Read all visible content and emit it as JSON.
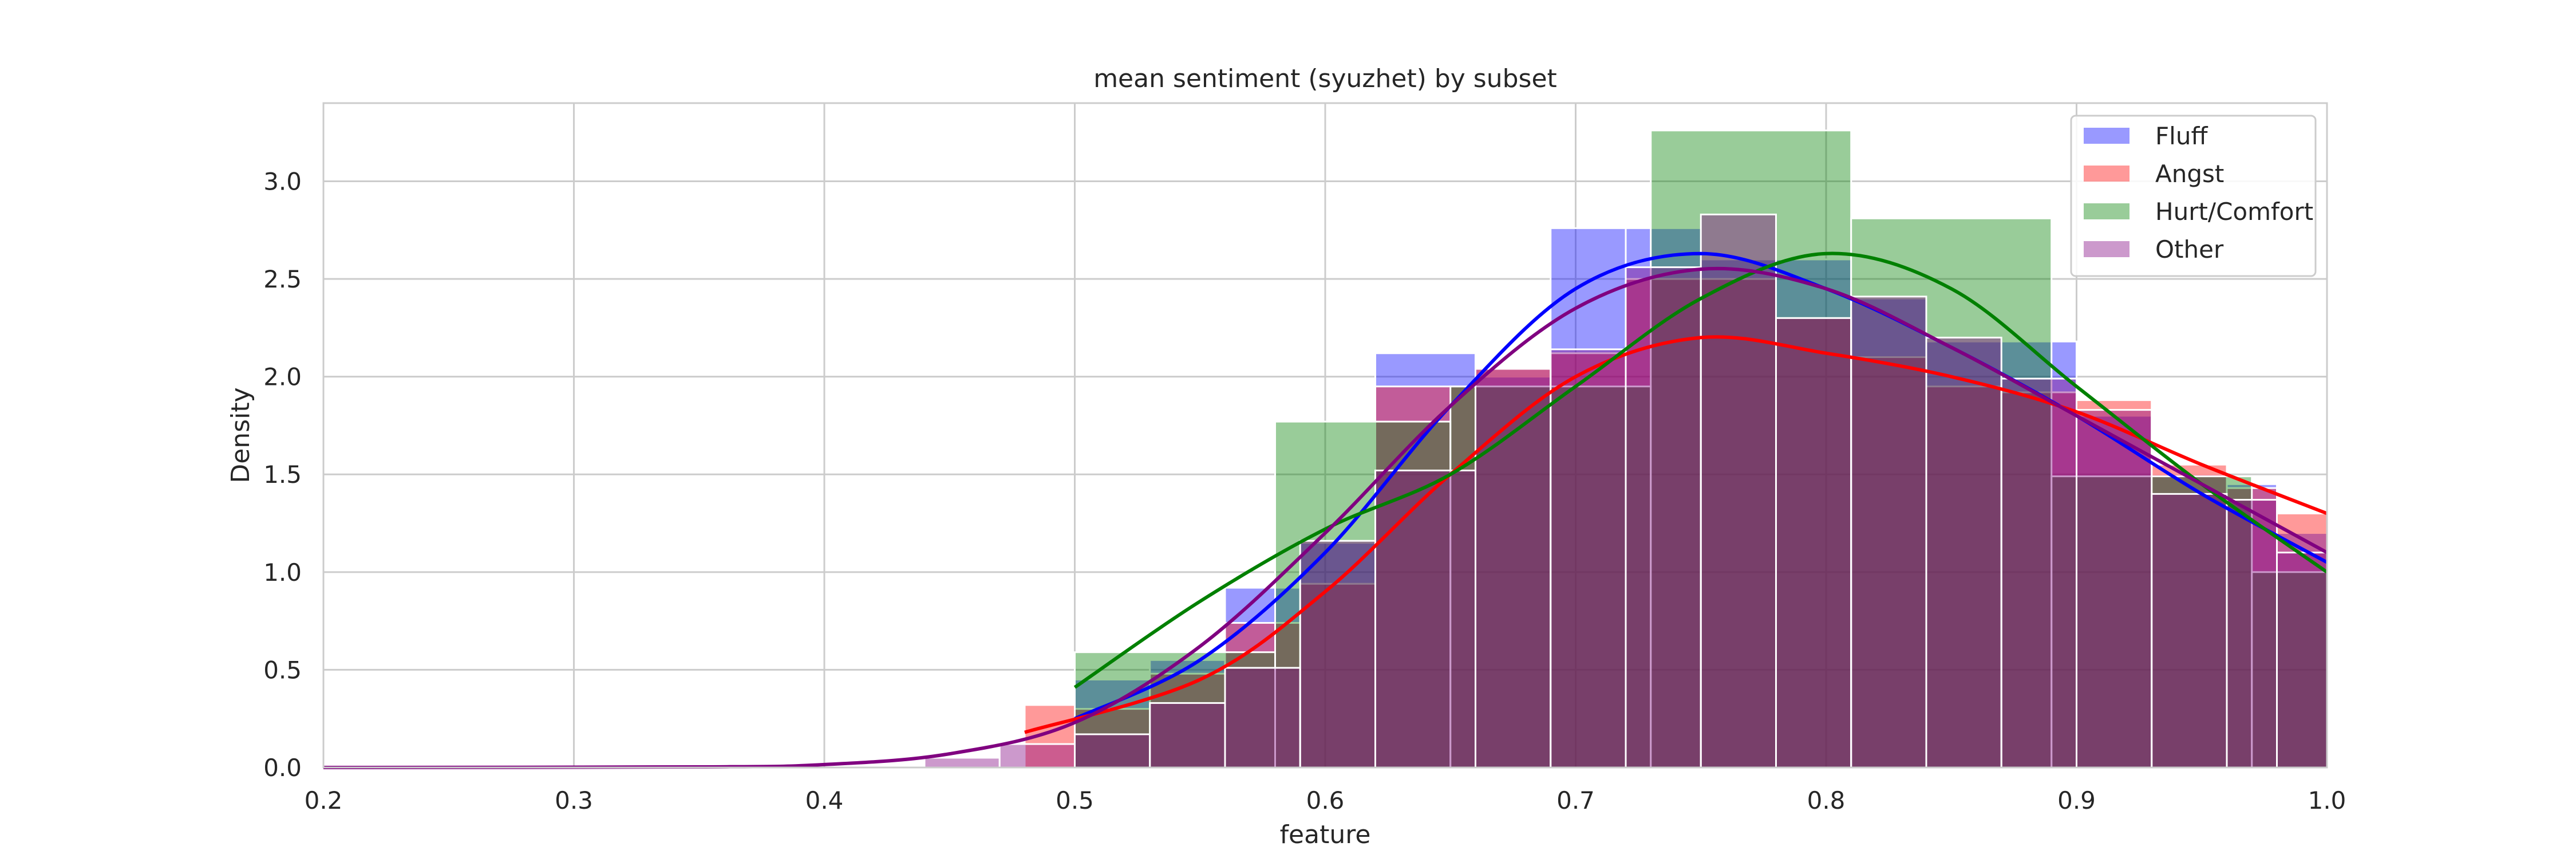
{
  "chart_data": {
    "type": "histogram",
    "title": "mean sentiment (syuzhet) by subset",
    "xlabel": "feature",
    "ylabel": "Density",
    "xlim": [
      0.2,
      1.0
    ],
    "ylim": [
      0,
      3.4
    ],
    "x_ticks": [
      0.2,
      0.3,
      0.4,
      0.5,
      0.6,
      0.7,
      0.8,
      0.9,
      1.0
    ],
    "y_ticks": [
      0.0,
      0.5,
      1.0,
      1.5,
      2.0,
      2.5,
      3.0
    ],
    "x_tick_labels": [
      "0.2",
      "0.3",
      "0.4",
      "0.5",
      "0.6",
      "0.7",
      "0.8",
      "0.9",
      "1.0"
    ],
    "y_tick_labels": [
      "0.0",
      "0.5",
      "1.0",
      "1.5",
      "2.0",
      "2.5",
      "3.0"
    ],
    "grid": true,
    "legend_position": "top-right",
    "series": [
      {
        "name": "Fluff",
        "color": "#0000ff",
        "bins": [
          [
            0.5,
            0.53,
            0.45
          ],
          [
            0.53,
            0.56,
            0.55
          ],
          [
            0.56,
            0.59,
            0.92
          ],
          [
            0.59,
            0.62,
            1.15
          ],
          [
            0.62,
            0.66,
            2.12
          ],
          [
            0.66,
            0.69,
            2.0
          ],
          [
            0.69,
            0.72,
            2.76
          ],
          [
            0.72,
            0.75,
            2.76
          ],
          [
            0.75,
            0.78,
            2.6
          ],
          [
            0.78,
            0.81,
            2.6
          ],
          [
            0.81,
            0.84,
            2.4
          ],
          [
            0.84,
            0.87,
            2.18
          ],
          [
            0.87,
            0.9,
            2.18
          ],
          [
            0.9,
            0.93,
            1.8
          ],
          [
            0.93,
            0.96,
            1.5
          ],
          [
            0.96,
            0.98,
            1.45
          ],
          [
            0.98,
            1.0,
            1.2
          ]
        ],
        "kde": [
          [
            0.5,
            0.25
          ],
          [
            0.55,
            0.55
          ],
          [
            0.6,
            1.1
          ],
          [
            0.65,
            1.85
          ],
          [
            0.7,
            2.45
          ],
          [
            0.75,
            2.63
          ],
          [
            0.8,
            2.45
          ],
          [
            0.85,
            2.15
          ],
          [
            0.9,
            1.8
          ],
          [
            0.95,
            1.4
          ],
          [
            1.0,
            1.05
          ]
        ]
      },
      {
        "name": "Angst",
        "color": "#ff0000",
        "bins": [
          [
            0.48,
            0.5,
            0.32
          ],
          [
            0.5,
            0.53,
            0.3
          ],
          [
            0.53,
            0.56,
            0.48
          ],
          [
            0.56,
            0.59,
            0.74
          ],
          [
            0.59,
            0.62,
            0.94
          ],
          [
            0.62,
            0.66,
            1.95
          ],
          [
            0.66,
            0.69,
            2.04
          ],
          [
            0.69,
            0.72,
            2.12
          ],
          [
            0.72,
            0.75,
            2.5
          ],
          [
            0.75,
            0.78,
            2.5
          ],
          [
            0.78,
            0.81,
            2.3
          ],
          [
            0.81,
            0.84,
            2.1
          ],
          [
            0.84,
            0.87,
            1.95
          ],
          [
            0.87,
            0.9,
            1.92
          ],
          [
            0.9,
            0.93,
            1.88
          ],
          [
            0.93,
            0.96,
            1.55
          ],
          [
            0.96,
            0.98,
            1.43
          ],
          [
            0.98,
            1.0,
            1.3
          ]
        ],
        "kde": [
          [
            0.48,
            0.18
          ],
          [
            0.55,
            0.45
          ],
          [
            0.6,
            0.9
          ],
          [
            0.65,
            1.5
          ],
          [
            0.7,
            2.0
          ],
          [
            0.75,
            2.2
          ],
          [
            0.8,
            2.12
          ],
          [
            0.85,
            2.0
          ],
          [
            0.9,
            1.82
          ],
          [
            0.95,
            1.55
          ],
          [
            1.0,
            1.3
          ]
        ]
      },
      {
        "name": "Hurt/Comfort",
        "color": "#008000",
        "bins": [
          [
            0.5,
            0.58,
            0.59
          ],
          [
            0.58,
            0.65,
            1.77
          ],
          [
            0.65,
            0.73,
            1.95
          ],
          [
            0.73,
            0.81,
            3.26
          ],
          [
            0.81,
            0.89,
            2.81
          ],
          [
            0.89,
            0.97,
            1.49
          ],
          [
            0.97,
            1.0,
            1.0
          ]
        ],
        "kde": [
          [
            0.5,
            0.41
          ],
          [
            0.55,
            0.85
          ],
          [
            0.6,
            1.22
          ],
          [
            0.65,
            1.5
          ],
          [
            0.7,
            1.95
          ],
          [
            0.75,
            2.4
          ],
          [
            0.8,
            2.63
          ],
          [
            0.85,
            2.45
          ],
          [
            0.9,
            1.95
          ],
          [
            0.95,
            1.45
          ],
          [
            1.0,
            1.0
          ]
        ]
      },
      {
        "name": "Other",
        "color": "#800080",
        "bins": [
          [
            0.44,
            0.47,
            0.05
          ],
          [
            0.47,
            0.5,
            0.12
          ],
          [
            0.5,
            0.53,
            0.17
          ],
          [
            0.53,
            0.56,
            0.33
          ],
          [
            0.56,
            0.59,
            0.51
          ],
          [
            0.59,
            0.62,
            1.16
          ],
          [
            0.62,
            0.66,
            1.52
          ],
          [
            0.66,
            0.69,
            2.04
          ],
          [
            0.69,
            0.72,
            2.14
          ],
          [
            0.72,
            0.75,
            2.56
          ],
          [
            0.75,
            0.78,
            2.83
          ],
          [
            0.78,
            0.81,
            2.3
          ],
          [
            0.81,
            0.84,
            2.41
          ],
          [
            0.84,
            0.87,
            2.2
          ],
          [
            0.87,
            0.9,
            1.99
          ],
          [
            0.9,
            0.93,
            1.83
          ],
          [
            0.93,
            0.96,
            1.4
          ],
          [
            0.96,
            0.98,
            1.37
          ],
          [
            0.98,
            1.0,
            1.1
          ]
        ],
        "kde": [
          [
            0.2,
            0.0
          ],
          [
            0.35,
            0.003
          ],
          [
            0.4,
            0.015
          ],
          [
            0.45,
            0.07
          ],
          [
            0.5,
            0.23
          ],
          [
            0.55,
            0.62
          ],
          [
            0.6,
            1.2
          ],
          [
            0.65,
            1.85
          ],
          [
            0.7,
            2.35
          ],
          [
            0.75,
            2.55
          ],
          [
            0.8,
            2.45
          ],
          [
            0.85,
            2.15
          ],
          [
            0.9,
            1.8
          ],
          [
            0.95,
            1.45
          ],
          [
            1.0,
            1.1
          ]
        ]
      }
    ]
  }
}
